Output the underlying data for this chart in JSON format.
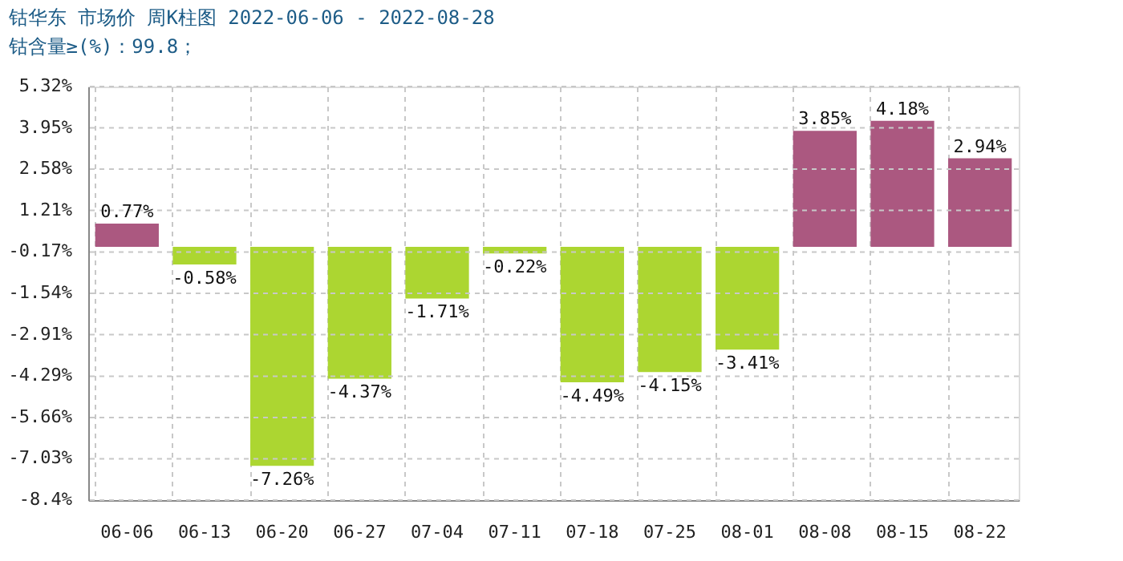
{
  "chart_data": {
    "type": "bar",
    "title": "钴华东 市场价 周K柱图 2022-06-06 - 2022-08-28",
    "subtitle": "钴含量≥(%)：99.8；",
    "categories": [
      "06-06",
      "06-13",
      "06-20",
      "06-27",
      "07-04",
      "07-11",
      "07-18",
      "07-25",
      "08-01",
      "08-08",
      "08-15",
      "08-22"
    ],
    "values": [
      0.77,
      -0.58,
      -7.26,
      -4.37,
      -1.71,
      -0.22,
      -4.49,
      -4.15,
      -3.41,
      3.85,
      4.18,
      2.94
    ],
    "value_labels": [
      "0.77%",
      "-0.58%",
      "-7.26%",
      "-4.37%",
      "-1.71%",
      "-0.22%",
      "-4.49%",
      "-4.15%",
      "-3.41%",
      "3.85%",
      "4.18%",
      "2.94%"
    ],
    "colors": [
      "#ab5880",
      "#acd631",
      "#acd631",
      "#acd631",
      "#acd631",
      "#acd631",
      "#acd631",
      "#acd631",
      "#acd631",
      "#ab5880",
      "#ab5880",
      "#ab5880"
    ],
    "ylim": [
      -8.4,
      5.32
    ],
    "yticks": [
      {
        "value": -8.4,
        "label": "-8.4%"
      },
      {
        "value": -7.03,
        "label": "-7.03%"
      },
      {
        "value": -5.66,
        "label": "-5.66%"
      },
      {
        "value": -4.29,
        "label": "-4.29%"
      },
      {
        "value": -2.91,
        "label": "-2.91%"
      },
      {
        "value": -1.54,
        "label": "-1.54%"
      },
      {
        "value": -0.17,
        "label": "-0.17%"
      },
      {
        "value": 1.21,
        "label": "1.21%"
      },
      {
        "value": 2.58,
        "label": "2.58%"
      },
      {
        "value": 3.95,
        "label": "3.95%"
      },
      {
        "value": 5.32,
        "label": "5.32%"
      }
    ],
    "grid": true,
    "legend": false
  }
}
